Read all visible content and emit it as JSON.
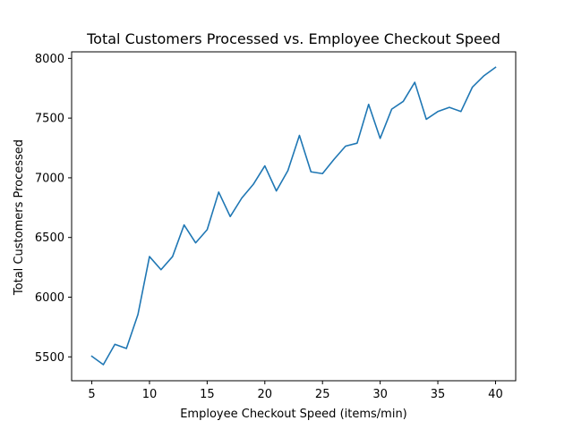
{
  "chart_data": {
    "type": "line",
    "title": "Total Customers Processed vs. Employee Checkout Speed",
    "xlabel": "Employee Checkout Speed (items/min)",
    "ylabel": "Total Customers Processed",
    "xlim": [
      3.25,
      41.75
    ],
    "ylim": [
      5300,
      8055
    ],
    "xticks": [
      5,
      10,
      15,
      20,
      25,
      30,
      35,
      40
    ],
    "yticks": [
      5500,
      6000,
      6500,
      7000,
      7500,
      8000
    ],
    "grid": false,
    "line_color": "#1f77b4",
    "x": [
      5,
      6,
      7,
      8,
      9,
      10,
      11,
      12,
      13,
      14,
      15,
      16,
      17,
      18,
      19,
      20,
      21,
      22,
      23,
      24,
      25,
      26,
      27,
      28,
      29,
      30,
      31,
      32,
      33,
      34,
      35,
      36,
      37,
      38,
      39,
      40
    ],
    "series": [
      {
        "values": [
          5505,
          5435,
          5605,
          5570,
          5855,
          6340,
          6230,
          6340,
          6605,
          6455,
          6565,
          6880,
          6675,
          6830,
          6945,
          7100,
          6890,
          7060,
          7355,
          7050,
          7035,
          7155,
          7265,
          7290,
          7615,
          7330,
          7575,
          7640,
          7800,
          7490,
          7555,
          7590,
          7555,
          7760,
          7855,
          7925
        ]
      }
    ]
  }
}
